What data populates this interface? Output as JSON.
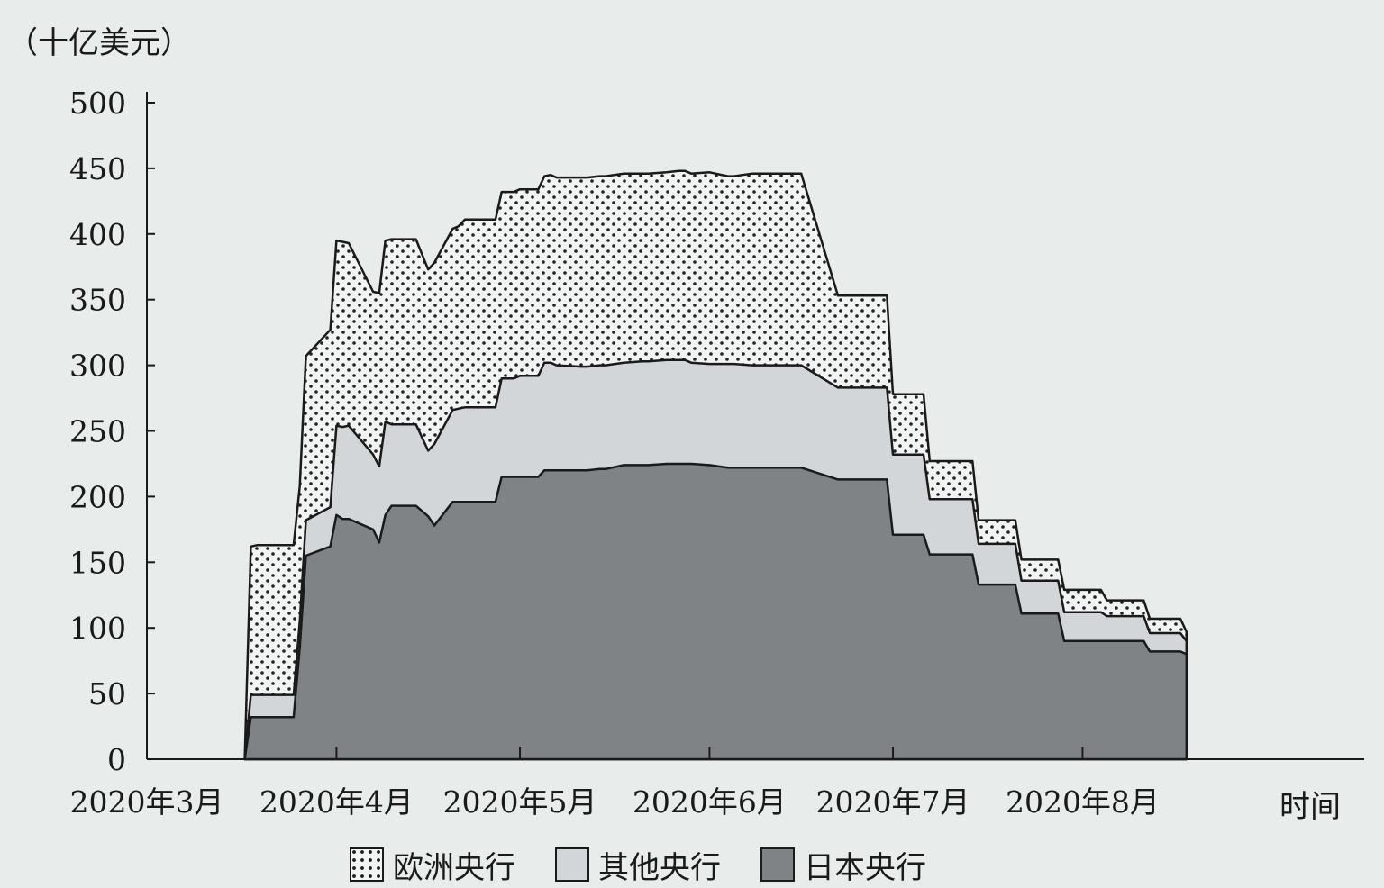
{
  "chart_data": {
    "type": "area",
    "stacked": true,
    "title": "",
    "ylabel": "（十亿美元）",
    "xlabel": "时间",
    "ylim": [
      0,
      500
    ],
    "yticks": [
      0,
      50,
      100,
      150,
      200,
      250,
      300,
      350,
      400,
      450,
      500
    ],
    "x_tick_labels": [
      "2020年3月",
      "2020年4月",
      "2020年5月",
      "2020年6月",
      "2020年7月",
      "2020年8月"
    ],
    "x_tick_dates": [
      "2020-03-01",
      "2020-04-01",
      "2020-05-01",
      "2020-06-01",
      "2020-07-01",
      "2020-08-01"
    ],
    "x_range": [
      "2020-03-01",
      "2020-09-10"
    ],
    "legend_position": "bottom",
    "colors": {
      "background": "#e8ecea",
      "ecb_fill": "#f2f4f3",
      "ecb_dots": "#222222",
      "others_fill": "#d3d6d8",
      "boj_fill": "#7f8386",
      "outline": "#1a1a1a"
    },
    "x": [
      "2020-03-17",
      "2020-03-18",
      "2020-03-19",
      "2020-03-25",
      "2020-03-26",
      "2020-03-27",
      "2020-03-31",
      "2020-04-01",
      "2020-04-02",
      "2020-04-03",
      "2020-04-07",
      "2020-04-08",
      "2020-04-09",
      "2020-04-10",
      "2020-04-14",
      "2020-04-16",
      "2020-04-17",
      "2020-04-20",
      "2020-04-21",
      "2020-04-22",
      "2020-04-23",
      "2020-04-24",
      "2020-04-27",
      "2020-04-28",
      "2020-04-30",
      "2020-05-01",
      "2020-05-04",
      "2020-05-05",
      "2020-05-06",
      "2020-05-07",
      "2020-05-11",
      "2020-05-12",
      "2020-05-14",
      "2020-05-15",
      "2020-05-18",
      "2020-05-21",
      "2020-05-22",
      "2020-05-25",
      "2020-05-27",
      "2020-05-28",
      "2020-05-29",
      "2020-06-01",
      "2020-06-04",
      "2020-06-05",
      "2020-06-08",
      "2020-06-09",
      "2020-06-15",
      "2020-06-16",
      "2020-06-22",
      "2020-06-23",
      "2020-06-30",
      "2020-07-01",
      "2020-07-06",
      "2020-07-07",
      "2020-07-14",
      "2020-07-15",
      "2020-07-21",
      "2020-07-22",
      "2020-07-28",
      "2020-07-29",
      "2020-08-04",
      "2020-08-05",
      "2020-08-11",
      "2020-08-12",
      "2020-08-17",
      "2020-08-18"
    ],
    "series": [
      {
        "name": "日本央行",
        "values": [
          0,
          32,
          32,
          32,
          85,
          155,
          162,
          186,
          183,
          183,
          175,
          165,
          186,
          193,
          193,
          185,
          178,
          196,
          196,
          196,
          196,
          196,
          196,
          215,
          215,
          215,
          215,
          220,
          220,
          220,
          220,
          220,
          221,
          221,
          224,
          224,
          224,
          225,
          225,
          225,
          225,
          224,
          222,
          222,
          222,
          222,
          222,
          222,
          213,
          213,
          213,
          171,
          171,
          156,
          156,
          133,
          133,
          111,
          111,
          90,
          90,
          90,
          90,
          82,
          82,
          80
        ]
      },
      {
        "name": "其他央行",
        "values": [
          0,
          17,
          17,
          17,
          20,
          27,
          30,
          68,
          70,
          71,
          57,
          58,
          71,
          62,
          62,
          50,
          62,
          70,
          71,
          72,
          72,
          72,
          72,
          75,
          75,
          77,
          77,
          82,
          82,
          80,
          79,
          79,
          79,
          79,
          78,
          79,
          79,
          79,
          79,
          79,
          77,
          77,
          79,
          79,
          78,
          78,
          78,
          78,
          70,
          70,
          70,
          61,
          61,
          42,
          42,
          31,
          31,
          25,
          25,
          22,
          22,
          19,
          19,
          14,
          14,
          10
        ]
      },
      {
        "name": "欧洲央行",
        "values": [
          0,
          113,
          114,
          114,
          103,
          125,
          135,
          141,
          141,
          139,
          124,
          132,
          138,
          141,
          141,
          138,
          138,
          138,
          139,
          143,
          143,
          143,
          143,
          142,
          142,
          142,
          142,
          142,
          143,
          143,
          144,
          144,
          144,
          144,
          144,
          143,
          143,
          143,
          144,
          144,
          144,
          146,
          143,
          143,
          146,
          146,
          146,
          146,
          70,
          70,
          70,
          46,
          46,
          29,
          29,
          18,
          18,
          16,
          16,
          17,
          17,
          12,
          12,
          11,
          11,
          7
        ]
      }
    ]
  }
}
